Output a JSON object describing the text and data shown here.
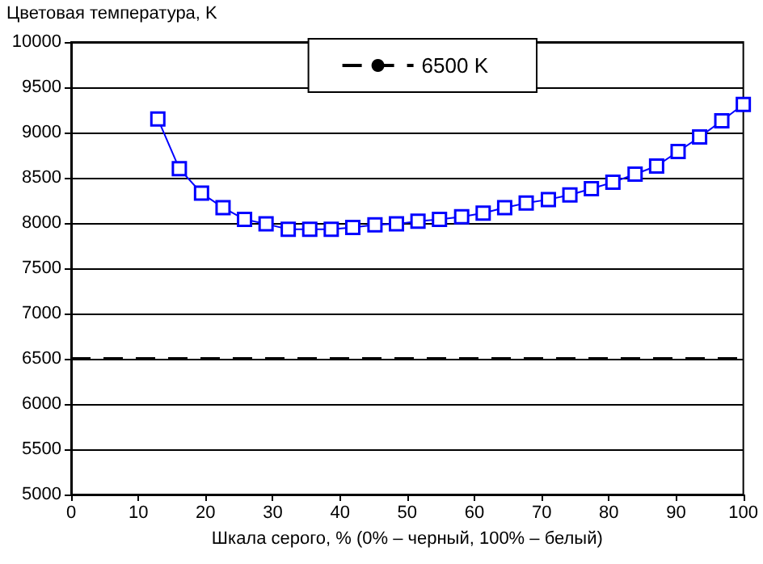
{
  "chart_data": {
    "type": "line",
    "ylabel": "Цветовая температура, K",
    "xlabel": "Шкала серого, % (0% – черный, 100% – белый)",
    "x": [
      12.9,
      16.1,
      19.4,
      22.6,
      25.8,
      29.0,
      32.3,
      35.5,
      38.7,
      41.9,
      45.2,
      48.4,
      51.6,
      54.8,
      58.1,
      61.3,
      64.5,
      67.7,
      71.0,
      74.2,
      77.4,
      80.6,
      83.9,
      87.1,
      90.3,
      93.5,
      96.8,
      100
    ],
    "series": [
      {
        "color": "#0000ff",
        "values": [
          9150,
          8600,
          8330,
          8170,
          8040,
          7990,
          7930,
          7930,
          7930,
          7950,
          7980,
          7990,
          8020,
          8040,
          8070,
          8110,
          8170,
          8220,
          8260,
          8310,
          8380,
          8450,
          8540,
          8630,
          8790,
          8950,
          9130,
          9310
        ]
      }
    ],
    "ref_lines": [
      {
        "axis": "y",
        "value": 6500,
        "label": "6500 K",
        "color": "#000000",
        "line_style": "dashed"
      }
    ],
    "xlim": [
      0,
      100
    ],
    "xticks": [
      0,
      10,
      20,
      30,
      40,
      50,
      60,
      70,
      80,
      90,
      100
    ],
    "ylim": [
      5000,
      10000
    ],
    "yticks": [
      5000,
      5500,
      6000,
      6500,
      7000,
      7500,
      8000,
      8500,
      9000,
      9500,
      10000
    ],
    "grid": "y",
    "legend": "top right",
    "marker": "square",
    "line_style": "solid"
  }
}
